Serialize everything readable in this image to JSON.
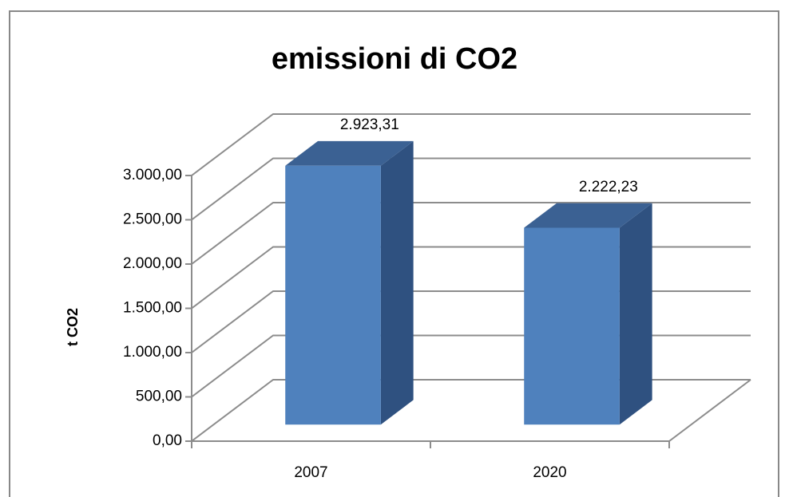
{
  "chart_data": {
    "type": "bar3d",
    "title": "emissioni di CO2",
    "y_label": "t CO2",
    "categories": [
      "2007",
      "2020"
    ],
    "values": [
      2923.31,
      2222.23
    ],
    "value_labels": [
      "2.923,31",
      "2.222,23"
    ],
    "color": "#4f81bd",
    "ylim": [
      0,
      3000
    ],
    "yticks": [
      {
        "value": 0,
        "label": "0,00"
      },
      {
        "value": 500,
        "label": "500,00"
      },
      {
        "value": 1000,
        "label": "1.000,00"
      },
      {
        "value": 1500,
        "label": "1.500,00"
      },
      {
        "value": 2000,
        "label": "2.000,00"
      },
      {
        "value": 2500,
        "label": "2.500,00"
      },
      {
        "value": 3000,
        "label": "3.000,00"
      }
    ],
    "grid": true
  }
}
